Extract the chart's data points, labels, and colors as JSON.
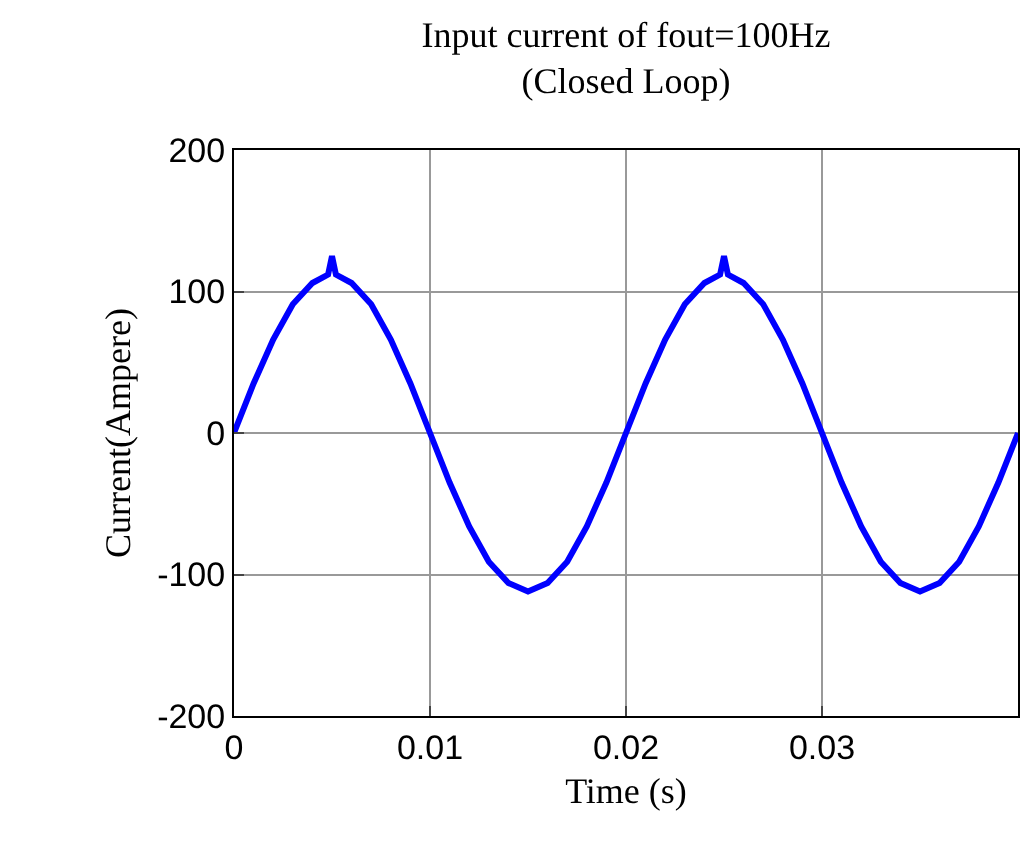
{
  "chart_data": {
    "type": "line",
    "title": "Input current of fout=100Hz\n(Closed Loop)",
    "xlabel": "Time (s)",
    "ylabel": "Current(Ampere)",
    "x": [
      0,
      0.001,
      0.002,
      0.003,
      0.004,
      0.0048,
      0.005,
      0.0052,
      0.006,
      0.007,
      0.008,
      0.009,
      0.01,
      0.011,
      0.012,
      0.013,
      0.014,
      0.015,
      0.016,
      0.017,
      0.018,
      0.019,
      0.02,
      0.021,
      0.022,
      0.023,
      0.024,
      0.0248,
      0.025,
      0.0252,
      0.026,
      0.027,
      0.028,
      0.029,
      0.03,
      0.031,
      0.032,
      0.033,
      0.034,
      0.035,
      0.036,
      0.037,
      0.038,
      0.039,
      0.04
    ],
    "series": [
      {
        "color": "#0000ff",
        "values": [
          0,
          35,
          66,
          91,
          106,
          112,
          125,
          112,
          106,
          91,
          66,
          35,
          0,
          -35,
          -66,
          -91,
          -106,
          -112,
          -106,
          -91,
          -66,
          -35,
          0,
          35,
          66,
          91,
          106,
          112,
          125,
          112,
          106,
          91,
          66,
          35,
          0,
          -35,
          -66,
          -91,
          -106,
          -112,
          -106,
          -91,
          -66,
          -35,
          0
        ]
      }
    ],
    "xlim": [
      0,
      0.04
    ],
    "xticks": [
      0,
      0.01,
      0.02,
      0.03
    ],
    "ylim": [
      -200,
      200
    ],
    "yticks": [
      -200,
      -100,
      0,
      100,
      200
    ],
    "grid": true,
    "line_style": "solid",
    "marker": "none"
  }
}
